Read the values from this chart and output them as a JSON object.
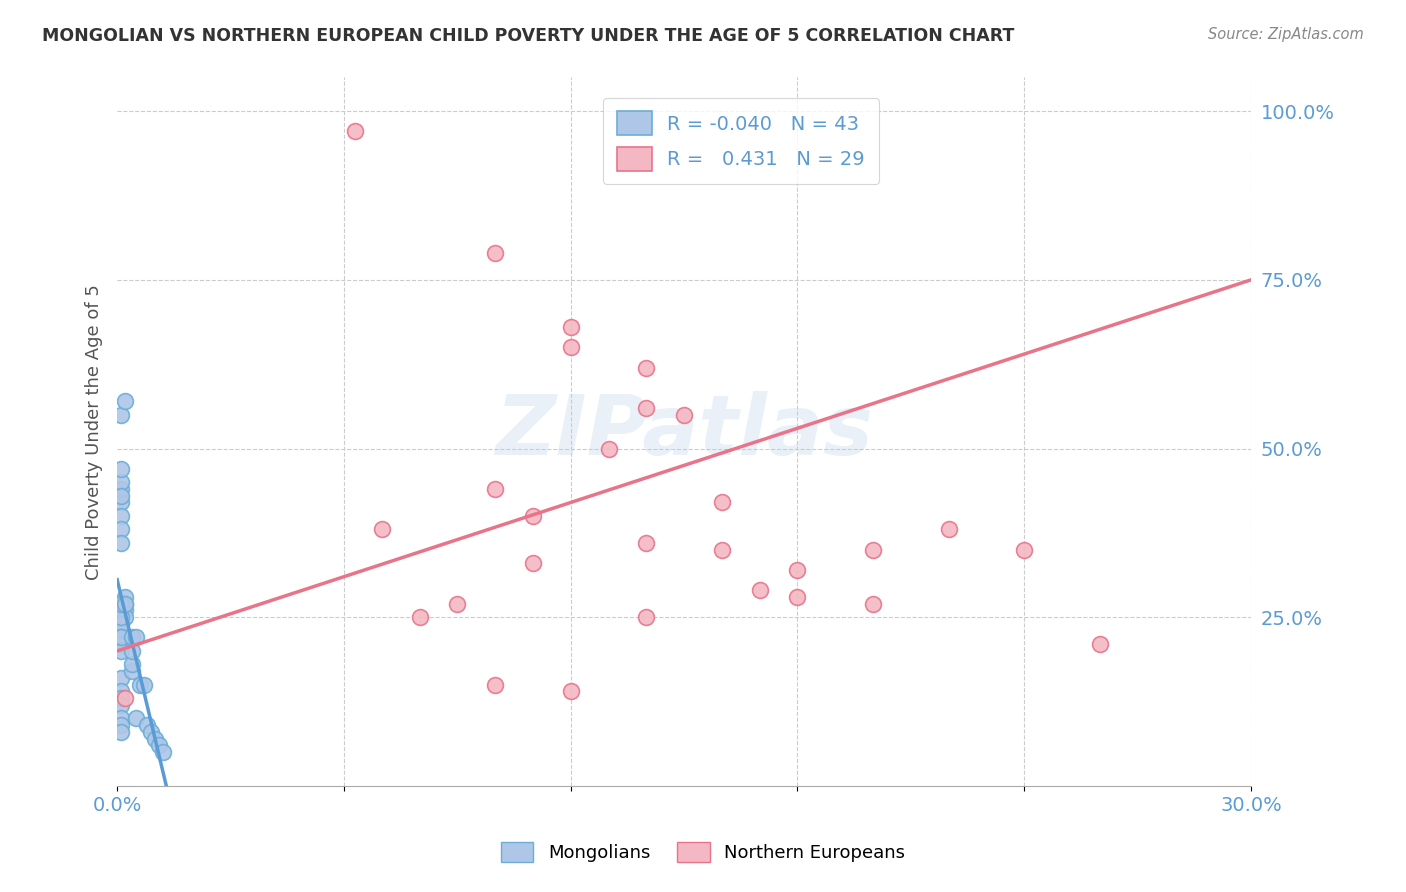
{
  "title": "MONGOLIAN VS NORTHERN EUROPEAN CHILD POVERTY UNDER THE AGE OF 5 CORRELATION CHART",
  "source": "Source: ZipAtlas.com",
  "ylabel": "Child Poverty Under the Age of 5",
  "x_min": 0.0,
  "x_max": 0.3,
  "y_min": 0.0,
  "y_max": 1.05,
  "legend_R1": "-0.040",
  "legend_N1": "43",
  "legend_R2": "0.431",
  "legend_N2": "29",
  "mongolian_color": "#aec6e8",
  "northern_european_color": "#f4b8c4",
  "mongolian_edge_color": "#6aaed6",
  "northern_european_edge_color": "#e8748a",
  "mongolian_line_color": "#5b9bd5",
  "northern_european_line_color": "#e8748a",
  "background_color": "#ffffff",
  "watermark": "ZIPatlas",
  "mongolian_x": [
    0.001,
    0.002,
    0.001,
    0.001,
    0.001,
    0.001,
    0.001,
    0.001,
    0.001,
    0.001,
    0.002,
    0.002,
    0.002,
    0.002,
    0.001,
    0.001,
    0.001,
    0.001,
    0.001,
    0.001,
    0.001,
    0.001,
    0.002,
    0.001,
    0.001,
    0.001,
    0.001,
    0.001,
    0.001,
    0.001,
    0.004,
    0.004,
    0.004,
    0.004,
    0.005,
    0.005,
    0.006,
    0.007,
    0.008,
    0.009,
    0.01,
    0.011,
    0.012
  ],
  "mongolian_y": [
    0.55,
    0.57,
    0.42,
    0.44,
    0.4,
    0.45,
    0.43,
    0.47,
    0.38,
    0.36,
    0.26,
    0.27,
    0.28,
    0.25,
    0.23,
    0.24,
    0.22,
    0.21,
    0.2,
    0.22,
    0.25,
    0.27,
    0.27,
    0.16,
    0.14,
    0.13,
    0.12,
    0.1,
    0.09,
    0.08,
    0.17,
    0.18,
    0.22,
    0.2,
    0.22,
    0.1,
    0.15,
    0.15,
    0.09,
    0.08,
    0.07,
    0.06,
    0.05
  ],
  "northern_european_x": [
    0.002,
    0.063,
    0.07,
    0.08,
    0.09,
    0.1,
    0.1,
    0.11,
    0.11,
    0.12,
    0.12,
    0.13,
    0.14,
    0.14,
    0.14,
    0.14,
    0.15,
    0.16,
    0.16,
    0.17,
    0.18,
    0.18,
    0.2,
    0.2,
    0.22,
    0.24,
    0.26,
    0.1,
    0.12
  ],
  "northern_european_y": [
    0.13,
    0.97,
    0.38,
    0.25,
    0.27,
    0.79,
    0.15,
    0.33,
    0.4,
    0.68,
    0.65,
    0.5,
    0.62,
    0.56,
    0.36,
    0.25,
    0.55,
    0.35,
    0.42,
    0.29,
    0.32,
    0.28,
    0.27,
    0.35,
    0.38,
    0.35,
    0.21,
    0.44,
    0.14
  ]
}
